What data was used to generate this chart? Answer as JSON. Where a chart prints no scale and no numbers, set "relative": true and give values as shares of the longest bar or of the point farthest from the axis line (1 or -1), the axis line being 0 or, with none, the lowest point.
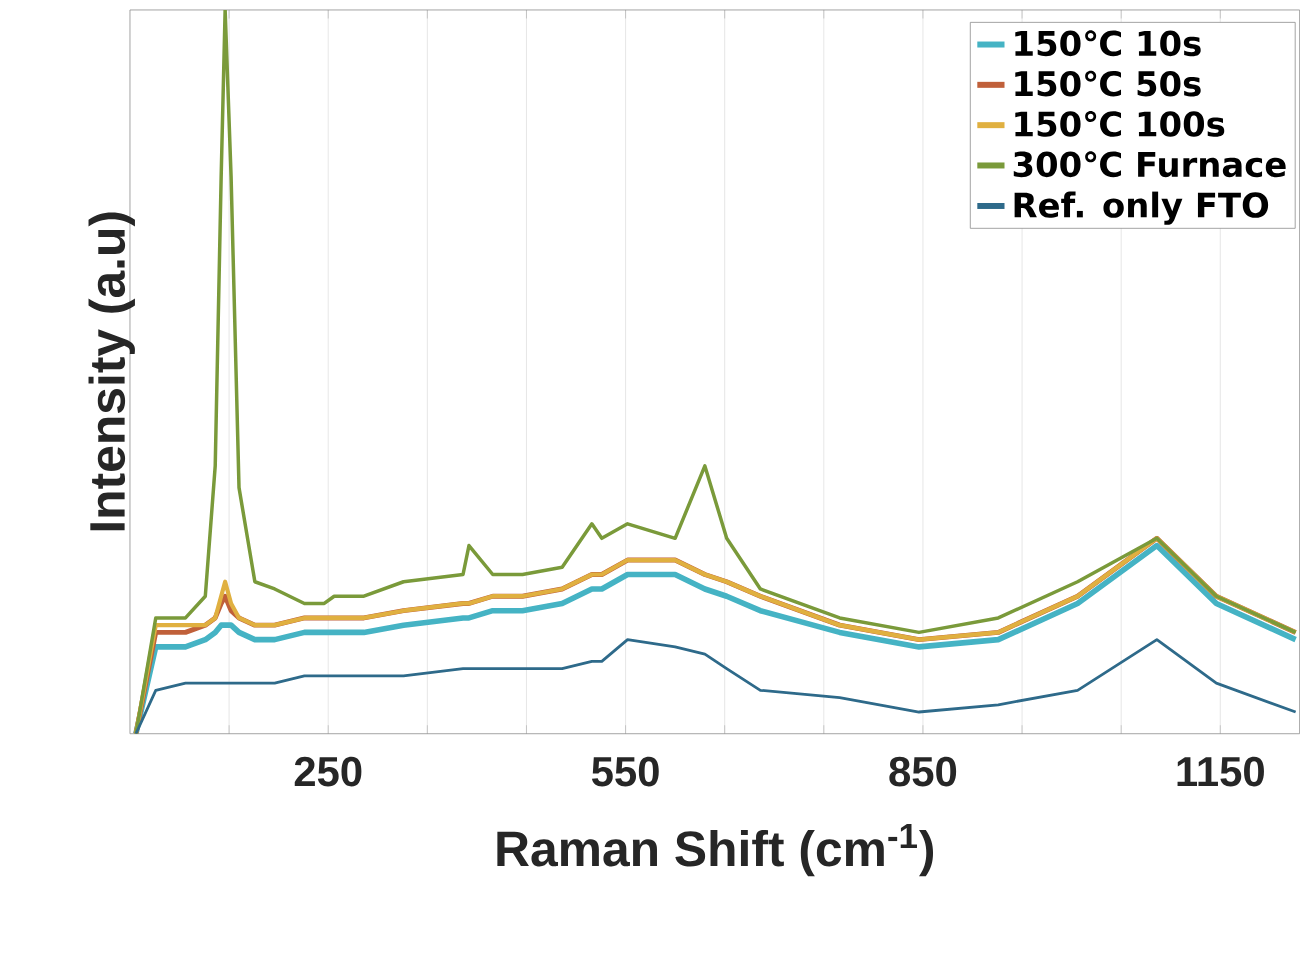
{
  "chart_data": {
    "type": "line",
    "xlabel": "Raman Shift (cm$^{-1}$)",
    "ylabel": "Intensity (a.u)",
    "relative": true,
    "x": [
      56,
      76,
      106,
      126,
      136,
      142,
      146,
      152,
      160,
      176,
      196,
      226,
      246,
      256,
      286,
      326,
      386,
      392,
      416,
      446,
      486,
      516,
      526,
      552,
      600,
      630,
      652,
      686,
      766,
      846,
      926,
      1006,
      1086,
      1146,
      1226
    ],
    "xlim": [
      50,
      1230
    ],
    "xticks": [
      {
        "value": 150,
        "label": null
      },
      250,
      {
        "value": 350,
        "label": null
      },
      {
        "value": 450,
        "label": null
      },
      550,
      {
        "value": 650,
        "label": null
      },
      {
        "value": 750,
        "label": null
      },
      850,
      {
        "value": 950,
        "label": null
      },
      {
        "value": 1050,
        "label": null
      },
      1150
    ],
    "grid": "x",
    "legend": "top right",
    "line_style": "solid",
    "marker": "none",
    "series": [
      {
        "name": "150℃ 10s",
        "color": "#45b3c4",
        "values": [
          0,
          0.12,
          0.12,
          0.13,
          0.14,
          0.15,
          0.15,
          0.15,
          0.14,
          0.13,
          0.13,
          0.14,
          0.14,
          0.14,
          0.14,
          0.15,
          0.16,
          0.16,
          0.17,
          0.17,
          0.18,
          0.2,
          0.2,
          0.22,
          0.22,
          0.2,
          0.19,
          0.17,
          0.14,
          0.12,
          0.13,
          0.18,
          0.26,
          0.18,
          0.13
        ]
      },
      {
        "name": "150℃ 50s",
        "color": "#c0603a",
        "values": [
          0,
          0.14,
          0.14,
          0.15,
          0.16,
          0.18,
          0.19,
          0.17,
          0.16,
          0.15,
          0.15,
          0.16,
          0.16,
          0.16,
          0.16,
          0.17,
          0.18,
          0.18,
          0.19,
          0.19,
          0.2,
          0.22,
          0.22,
          0.24,
          0.24,
          0.22,
          0.21,
          0.19,
          0.15,
          0.13,
          0.14,
          0.19,
          0.27,
          0.19,
          0.14
        ]
      },
      {
        "name": "150℃ 100s",
        "color": "#e0b040",
        "values": [
          0,
          0.15,
          0.15,
          0.15,
          0.16,
          0.19,
          0.21,
          0.18,
          0.16,
          0.15,
          0.15,
          0.16,
          0.16,
          0.16,
          0.16,
          0.17,
          0.18,
          0.18,
          0.19,
          0.19,
          0.2,
          0.22,
          0.22,
          0.24,
          0.24,
          0.22,
          0.21,
          0.19,
          0.15,
          0.13,
          0.14,
          0.19,
          0.27,
          0.19,
          0.14
        ]
      },
      {
        "name": "300℃ Furnace",
        "color": "#7a9a3a",
        "values": [
          0,
          0.16,
          0.16,
          0.19,
          0.37,
          0.77,
          1,
          0.77,
          0.34,
          0.21,
          0.2,
          0.18,
          0.18,
          0.19,
          0.19,
          0.21,
          0.22,
          0.26,
          0.22,
          0.22,
          0.23,
          0.29,
          0.27,
          0.29,
          0.27,
          0.37,
          0.27,
          0.2,
          0.16,
          0.14,
          0.16,
          0.21,
          0.27,
          0.19,
          0.14
        ]
      },
      {
        "name": "Ref. only FTO",
        "color": "#2e6a8a",
        "values": [
          0,
          0.06,
          0.07,
          0.07,
          0.07,
          0.07,
          0.07,
          0.07,
          0.07,
          0.07,
          0.07,
          0.08,
          0.08,
          0.08,
          0.08,
          0.08,
          0.09,
          0.09,
          0.09,
          0.09,
          0.09,
          0.1,
          0.1,
          0.13,
          0.12,
          0.11,
          0.09,
          0.06,
          0.05,
          0.03,
          0.04,
          0.06,
          0.13,
          0.07,
          0.03
        ]
      }
    ]
  }
}
